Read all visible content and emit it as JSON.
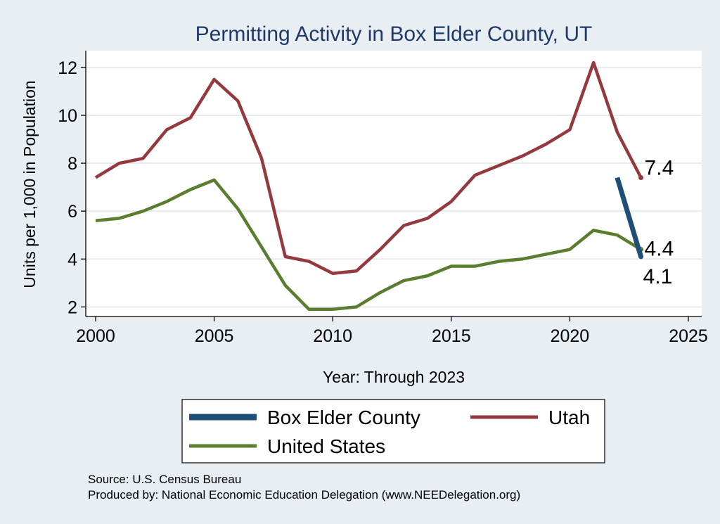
{
  "chart_data": {
    "type": "line",
    "title": "Permitting Activity in Box Elder County, UT",
    "xlabel": "Year: Through 2023",
    "ylabel": "Units per 1,000 in Population",
    "xlim": [
      2000,
      2025
    ],
    "ylim": [
      1.6,
      12.7
    ],
    "xticks": [
      2000,
      2005,
      2010,
      2015,
      2020,
      2025
    ],
    "yticks": [
      2,
      4,
      6,
      8,
      10,
      12
    ],
    "grid": true,
    "legend_position": "bottom",
    "series": [
      {
        "name": "Box Elder County",
        "color": "#1f4e79",
        "x": [
          2022,
          2023
        ],
        "values": [
          7.4,
          4.1
        ],
        "end_label": "4.1"
      },
      {
        "name": "Utah",
        "color": "#943a3f",
        "x": [
          2000,
          2001,
          2002,
          2003,
          2004,
          2005,
          2006,
          2007,
          2008,
          2009,
          2010,
          2011,
          2012,
          2013,
          2014,
          2015,
          2016,
          2017,
          2018,
          2019,
          2020,
          2021,
          2022,
          2023
        ],
        "values": [
          7.4,
          8.0,
          8.2,
          9.4,
          9.9,
          11.5,
          10.6,
          8.2,
          4.1,
          3.9,
          3.4,
          3.5,
          4.4,
          5.4,
          5.7,
          6.4,
          7.5,
          7.9,
          8.3,
          8.8,
          9.4,
          12.2,
          9.3,
          7.4
        ],
        "end_label": "7.4"
      },
      {
        "name": "United States",
        "color": "#5a7d2e",
        "x": [
          2000,
          2001,
          2002,
          2003,
          2004,
          2005,
          2006,
          2007,
          2008,
          2009,
          2010,
          2011,
          2012,
          2013,
          2014,
          2015,
          2016,
          2017,
          2018,
          2019,
          2020,
          2021,
          2022,
          2023
        ],
        "values": [
          5.6,
          5.7,
          6.0,
          6.4,
          6.9,
          7.3,
          6.1,
          4.5,
          2.9,
          1.9,
          1.9,
          2.0,
          2.6,
          3.1,
          3.3,
          3.7,
          3.7,
          3.9,
          4.0,
          4.2,
          4.4,
          5.2,
          5.0,
          4.4
        ],
        "end_label": "4.4"
      }
    ],
    "notes": {
      "source": "Source: U.S. Census Bureau",
      "produced_by": "Produced by: National Economic Education Delegation (www.NEEDelegation.org)"
    }
  }
}
